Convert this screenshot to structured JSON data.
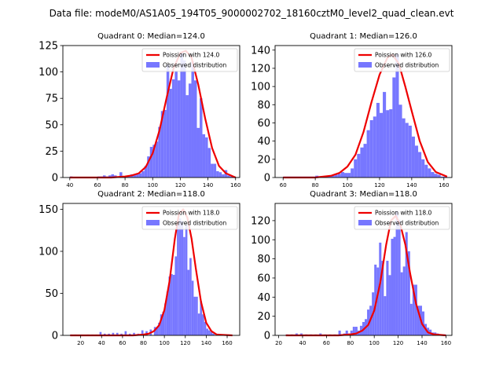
{
  "suptitle": "Data file: modeM0/AS1A05_194T05_9000002702_18160cztM0_level2_quad_clean.evt",
  "colors": {
    "hist": "#7777ff",
    "poisson": "#ee0000",
    "axes": "#000000"
  },
  "chart_data": [
    {
      "type": "bar",
      "title": "Quadrant 0: Median=124.0",
      "xlim": [
        35,
        163
      ],
      "ylim": [
        0,
        125
      ],
      "xticks": [
        40,
        60,
        80,
        100,
        120,
        140,
        160
      ],
      "yticks": [
        0,
        25,
        50,
        75,
        100,
        125
      ],
      "legend": [
        "Poission with 124.0",
        "Observed distribution"
      ],
      "hist_x": [
        40,
        60,
        62,
        64,
        66,
        68,
        70,
        72,
        74,
        76,
        78,
        80,
        82,
        84,
        86,
        88,
        90,
        92,
        94,
        96,
        98,
        100,
        102,
        104,
        106,
        108,
        110,
        112,
        114,
        116,
        118,
        120,
        122,
        124,
        126,
        128,
        130,
        132,
        134,
        136,
        138,
        140,
        142,
        144,
        146,
        148,
        150,
        152,
        154,
        156,
        158
      ],
      "hist_y": [
        1,
        1,
        1,
        2,
        1,
        2,
        3,
        2,
        1,
        5,
        1,
        1,
        1,
        3,
        3,
        3,
        4,
        6,
        11,
        20,
        29,
        31,
        34,
        48,
        63,
        64,
        107,
        84,
        93,
        101,
        92,
        119,
        111,
        78,
        89,
        110,
        92,
        47,
        75,
        41,
        38,
        28,
        13,
        13,
        6,
        5,
        3,
        7,
        2,
        1,
        1
      ],
      "poisson_x": [
        40,
        70,
        80,
        85,
        90,
        95,
        100,
        105,
        110,
        115,
        120,
        124,
        128,
        133,
        138,
        143,
        148,
        153,
        160
      ],
      "poisson_y": [
        0,
        0,
        1,
        2,
        4,
        10,
        23,
        45,
        75,
        103,
        118,
        120,
        114,
        88,
        56,
        28,
        11,
        4,
        0
      ]
    },
    {
      "type": "bar",
      "title": "Quadrant 1: Median=126.0",
      "xlim": [
        55,
        165
      ],
      "ylim": [
        0,
        145
      ],
      "xticks": [
        60,
        80,
        100,
        120,
        140,
        160
      ],
      "yticks": [
        0,
        20,
        40,
        60,
        80,
        100,
        120,
        140
      ],
      "legend": [
        "Poission with 126.0",
        "Observed distribution"
      ],
      "hist_x": [
        60,
        62,
        64,
        66,
        68,
        70,
        72,
        74,
        76,
        78,
        80,
        82,
        84,
        86,
        88,
        90,
        92,
        94,
        96,
        98,
        100,
        102,
        104,
        106,
        108,
        110,
        112,
        114,
        116,
        118,
        120,
        122,
        124,
        126,
        128,
        130,
        132,
        134,
        136,
        138,
        140,
        142,
        144,
        146,
        148,
        150,
        152,
        154,
        156,
        158,
        160
      ],
      "hist_y": [
        1,
        1,
        1,
        1,
        1,
        1,
        1,
        1,
        1,
        1,
        2,
        1,
        1,
        2,
        2,
        2,
        3,
        4,
        6,
        5,
        5,
        10,
        20,
        26,
        33,
        37,
        52,
        63,
        67,
        82,
        71,
        94,
        74,
        75,
        110,
        136,
        80,
        65,
        60,
        57,
        45,
        35,
        28,
        20,
        14,
        10,
        6,
        4,
        3,
        1,
        1
      ],
      "poisson_x": [
        60,
        80,
        85,
        90,
        95,
        100,
        105,
        110,
        115,
        120,
        125,
        128,
        132,
        136,
        140,
        145,
        150,
        155,
        162
      ],
      "poisson_y": [
        0,
        0,
        1,
        2,
        5,
        12,
        25,
        50,
        83,
        113,
        132,
        135,
        125,
        100,
        73,
        40,
        17,
        6,
        1
      ]
    },
    {
      "type": "bar",
      "title": "Quadrant 2: Median=118.0",
      "xlim": [
        3,
        172
      ],
      "ylim": [
        0,
        157
      ],
      "xticks": [
        20,
        40,
        60,
        80,
        100,
        120,
        140,
        160
      ],
      "yticks": [
        0,
        50,
        100,
        150
      ],
      "legend": [
        "Poission with 118.0",
        "Observed distribution"
      ],
      "hist_x": [
        10,
        14,
        20,
        26,
        30,
        34,
        38,
        42,
        46,
        50,
        54,
        58,
        62,
        66,
        70,
        74,
        78,
        82,
        86,
        90,
        92,
        94,
        96,
        98,
        100,
        102,
        104,
        106,
        108,
        110,
        112,
        114,
        116,
        118,
        120,
        122,
        124,
        126,
        128,
        130,
        132,
        134,
        136,
        138,
        140,
        142,
        144,
        146,
        150,
        154,
        158,
        162
      ],
      "hist_y": [
        1,
        1,
        1,
        1,
        1,
        1,
        4,
        2,
        2,
        3,
        3,
        2,
        5,
        2,
        3,
        2,
        6,
        5,
        7,
        10,
        9,
        15,
        25,
        28,
        38,
        52,
        70,
        73,
        72,
        94,
        135,
        139,
        136,
        117,
        131,
        78,
        92,
        65,
        46,
        46,
        26,
        41,
        25,
        16,
        8,
        6,
        4,
        2,
        2,
        1,
        1,
        1
      ],
      "poisson_x": [
        10,
        70,
        80,
        85,
        90,
        95,
        100,
        105,
        110,
        114,
        118,
        122,
        126,
        130,
        135,
        140,
        145,
        150,
        165
      ],
      "poisson_y": [
        0,
        0,
        1,
        2,
        5,
        12,
        30,
        65,
        115,
        145,
        150,
        140,
        115,
        80,
        40,
        15,
        5,
        1,
        0
      ]
    },
    {
      "type": "bar",
      "title": "Quadrant 3: Median=118.0",
      "xlim": [
        17,
        165
      ],
      "ylim": [
        0,
        138
      ],
      "xticks": [
        20,
        40,
        60,
        80,
        100,
        120,
        140,
        160
      ],
      "yticks": [
        0,
        20,
        40,
        60,
        80,
        100,
        120
      ],
      "legend": [
        "Poission with 118.0",
        "Observed distribution"
      ],
      "hist_x": [
        26,
        30,
        34,
        38,
        42,
        46,
        50,
        54,
        58,
        62,
        66,
        70,
        72,
        74,
        76,
        78,
        80,
        82,
        84,
        86,
        88,
        90,
        92,
        94,
        96,
        98,
        100,
        102,
        104,
        106,
        108,
        110,
        112,
        114,
        116,
        118,
        120,
        122,
        124,
        126,
        128,
        130,
        132,
        134,
        136,
        138,
        140,
        142,
        144,
        146,
        148,
        150,
        152,
        154,
        156,
        158
      ],
      "hist_y": [
        1,
        1,
        2,
        2,
        1,
        1,
        1,
        2,
        1,
        1,
        1,
        5,
        1,
        2,
        5,
        2,
        5,
        9,
        9,
        5,
        10,
        14,
        17,
        27,
        31,
        45,
        74,
        71,
        97,
        78,
        41,
        78,
        63,
        101,
        103,
        130,
        121,
        66,
        72,
        108,
        88,
        33,
        53,
        53,
        31,
        31,
        25,
        12,
        8,
        6,
        3,
        3,
        2,
        1,
        1,
        1
      ],
      "poisson_x": [
        26,
        70,
        80,
        85,
        90,
        95,
        100,
        105,
        110,
        114,
        118,
        122,
        126,
        130,
        135,
        140,
        145,
        150,
        160
      ],
      "poisson_y": [
        0,
        0,
        1,
        2,
        5,
        11,
        26,
        55,
        95,
        120,
        125,
        115,
        95,
        65,
        33,
        12,
        3,
        1,
        0
      ]
    }
  ]
}
